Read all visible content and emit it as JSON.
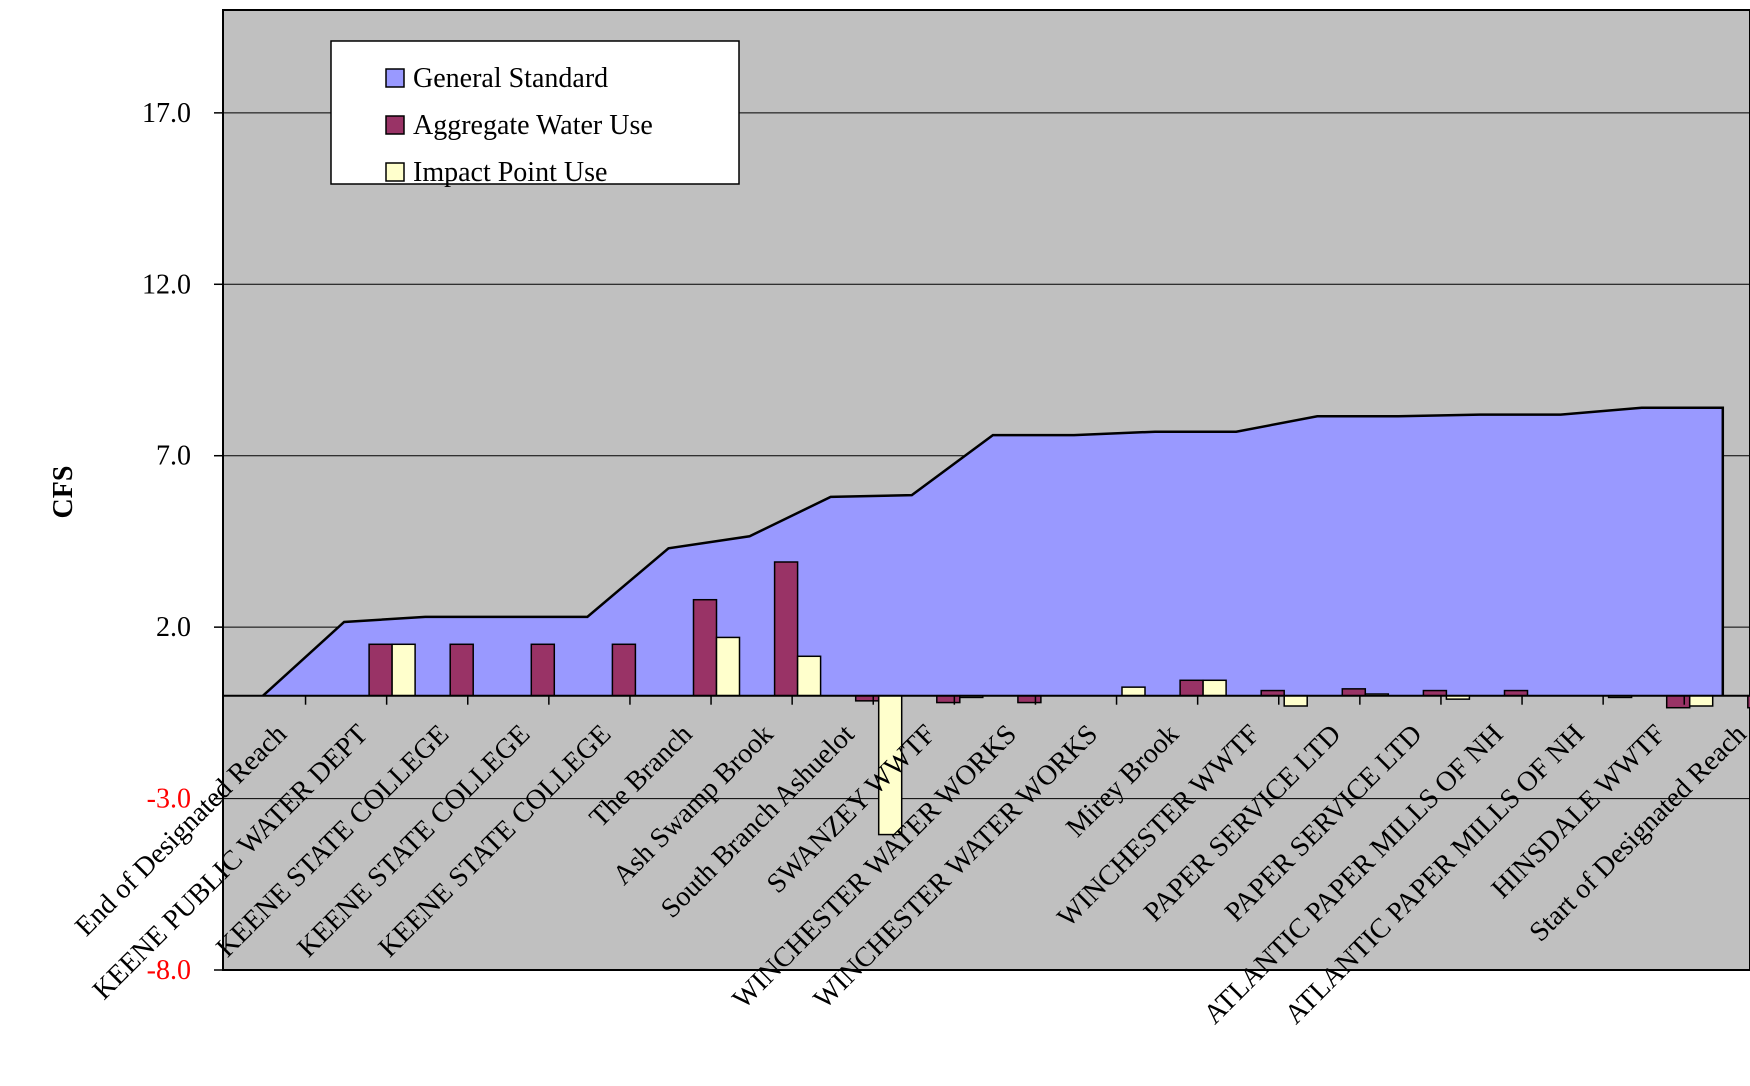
{
  "chart_data": {
    "type": "bar",
    "title": "",
    "xlabel": "",
    "ylabel": "CFS",
    "ylim": [
      -8.0,
      20.0
    ],
    "yticks": [
      {
        "value": 17.0,
        "label": "17.0",
        "color": "#000000"
      },
      {
        "value": 12.0,
        "label": "12.0",
        "color": "#000000"
      },
      {
        "value": 7.0,
        "label": "7.0",
        "color": "#000000"
      },
      {
        "value": 2.0,
        "label": "2.0",
        "color": "#000000"
      },
      {
        "value": -3.0,
        "label": "-3.0",
        "color": "#ff0000"
      },
      {
        "value": -8.0,
        "label": "-8.0",
        "color": "#ff0000"
      }
    ],
    "grid": true,
    "legend_position": "top-left",
    "categories": [
      "End of Designated Reach",
      "KEENE PUBLIC WATER DEPT",
      "KEENE STATE COLLEGE",
      "KEENE STATE COLLEGE",
      "KEENE STATE COLLEGE",
      "The Branch",
      "Ash Swamp Brook",
      "South Branch Ashuelot",
      "SWANZEY WWTF",
      "WINCHESTER WATER WORKS",
      "WINCHESTER WATER WORKS",
      "Mirey Brook",
      "WINCHESTER WWTF",
      "PAPER SERVICE LTD",
      "PAPER SERVICE LTD",
      "ATLANTIC PAPER MILLS OF NH",
      "ATLANTIC PAPER MILLS OF NH",
      "HINSDALE WWTF",
      "Start of Designated Reach"
    ],
    "series": [
      {
        "name": "General Standard",
        "kind": "area",
        "color": "#9999ff",
        "values": [
          0.0,
          2.15,
          2.3,
          2.3,
          2.3,
          4.3,
          4.65,
          5.8,
          5.85,
          7.6,
          7.6,
          7.7,
          7.7,
          8.15,
          8.15,
          8.2,
          8.2,
          8.4,
          8.4
        ]
      },
      {
        "name": "Aggregate Water Use",
        "kind": "bar",
        "color": "#993366",
        "values": [
          0.0,
          1.5,
          1.5,
          1.5,
          1.5,
          2.8,
          3.9,
          -0.15,
          -0.2,
          -0.2,
          0.0,
          0.45,
          0.15,
          0.2,
          0.15,
          0.15,
          0.0,
          -0.35,
          -0.35
        ]
      },
      {
        "name": "Impact Point Use",
        "kind": "bar",
        "color": "#ffffcc",
        "values": [
          0.0,
          1.5,
          0.0,
          0.0,
          0.0,
          1.7,
          1.15,
          -4.05,
          -0.05,
          0.0,
          0.25,
          0.45,
          -0.3,
          0.05,
          -0.1,
          0.0,
          -0.05,
          -0.3,
          0.0
        ]
      }
    ]
  },
  "colors": {
    "plot_background": "#c0c0c0",
    "gridline": "#000000",
    "axis": "#000000"
  }
}
